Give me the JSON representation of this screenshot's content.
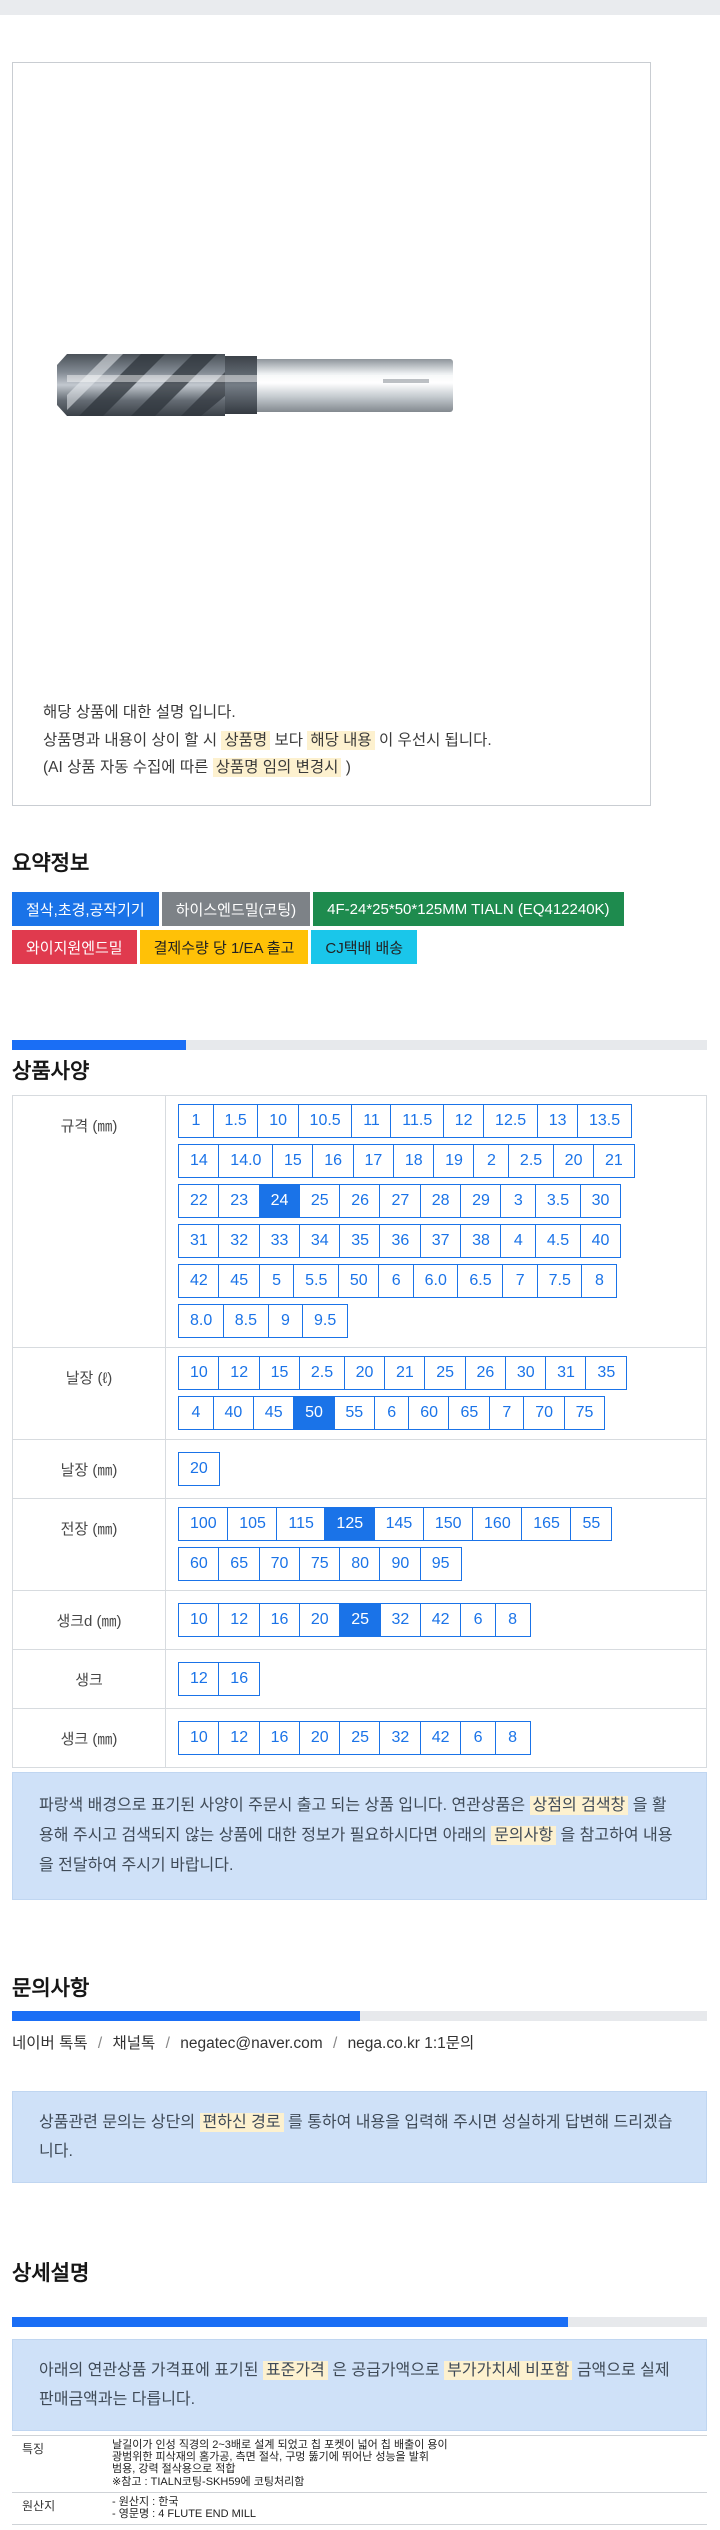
{
  "colors": {
    "accent_blue": "#1a73e8",
    "divider_blue": "#1a6ef5",
    "divider_gray": "#e7e9ec",
    "notice_bg": "#cfe1f8",
    "highlight_yellow": "#fdf1cf",
    "topbar_gray": "#e9ebee"
  },
  "product_box": {
    "image_name": "endmill-product-photo",
    "description_lines": [
      {
        "segments": [
          {
            "text": "해당 상품에 대한 설명 입니다.",
            "highlight": false
          }
        ]
      },
      {
        "segments": [
          {
            "text": "상품명과 내용이 상이 할 시 ",
            "highlight": false
          },
          {
            "text": "상품명",
            "highlight": true
          },
          {
            "text": " 보다 ",
            "highlight": false
          },
          {
            "text": "해당 내용",
            "highlight": true
          },
          {
            "text": " 이 우선시 됩니다.",
            "highlight": false
          }
        ]
      },
      {
        "segments": [
          {
            "text": "(AI 상품 자동 수집에 따른 ",
            "highlight": false
          },
          {
            "text": "상품명 임의 변경시",
            "highlight": true
          },
          {
            "text": " )",
            "highlight": false
          }
        ]
      }
    ]
  },
  "summary": {
    "heading": "요약정보",
    "badge_rows": [
      [
        {
          "label": "절삭,초경,공작기기",
          "bg": "#1a73e8",
          "fg": "#ffffff"
        },
        {
          "label": "하이스엔드밀(코팅)",
          "bg": "#7d8287",
          "fg": "#ffffff"
        },
        {
          "label": "4F-24*25*50*125MM TIALN (EQ412240K)",
          "bg": "#1e8b4e",
          "fg": "#ffffff"
        }
      ],
      [
        {
          "label": "와이지원엔드밀",
          "bg": "#e03a4e",
          "fg": "#ffffff"
        },
        {
          "label": "결제수량 당 1/EA 출고",
          "bg": "#ffc107",
          "fg": "#222222"
        },
        {
          "label": "CJ택배 배송",
          "bg": "#1ac6ea",
          "fg": "#222222"
        }
      ]
    ]
  },
  "spec": {
    "heading": "상품사양",
    "divider_fill_percent": 25,
    "rows": [
      {
        "label": "규격 (㎜)",
        "selected": [
          "24"
        ],
        "groups": [
          [
            "1",
            "1.5",
            "10",
            "10.5",
            "11",
            "11.5",
            "12",
            "12.5",
            "13",
            "13.5"
          ],
          [
            "14",
            "14.0",
            "15",
            "16",
            "17",
            "18",
            "19",
            "2",
            "2.5",
            "20",
            "21"
          ],
          [
            "22",
            "23",
            "24",
            "25",
            "26",
            "27",
            "28",
            "29",
            "3",
            "3.5",
            "30"
          ],
          [
            "31",
            "32",
            "33",
            "34",
            "35",
            "36",
            "37",
            "38",
            "4",
            "4.5",
            "40"
          ],
          [
            "42",
            "45",
            "5",
            "5.5",
            "50",
            "6",
            "6.0",
            "6.5",
            "7",
            "7.5",
            "8"
          ],
          [
            "8.0",
            "8.5",
            "9",
            "9.5"
          ]
        ]
      },
      {
        "label": "날장 (ℓ)",
        "selected": [
          "50"
        ],
        "groups": [
          [
            "10",
            "12",
            "15",
            "2.5",
            "20",
            "21",
            "25",
            "26",
            "30",
            "31",
            "35"
          ],
          [
            "4",
            "40",
            "45",
            "50",
            "55",
            "6",
            "60",
            "65",
            "7",
            "70",
            "75"
          ]
        ]
      },
      {
        "label": "날장 (㎜)",
        "selected": [],
        "groups": [
          [
            "20"
          ]
        ]
      },
      {
        "label": "전장 (㎜)",
        "selected": [
          "125"
        ],
        "groups": [
          [
            "100",
            "105",
            "115",
            "125",
            "145",
            "150",
            "160",
            "165",
            "55"
          ],
          [
            "60",
            "65",
            "70",
            "75",
            "80",
            "90",
            "95"
          ]
        ]
      },
      {
        "label": "생크d (㎜)",
        "selected": [
          "25"
        ],
        "groups": [
          [
            "10",
            "12",
            "16",
            "20",
            "25",
            "32",
            "42",
            "6",
            "8"
          ]
        ]
      },
      {
        "label": "생크",
        "selected": [],
        "groups": [
          [
            "12",
            "16"
          ]
        ]
      },
      {
        "label": "생크 (㎜)",
        "selected": [],
        "groups": [
          [
            "10",
            "12",
            "16",
            "20",
            "25",
            "32",
            "42",
            "6",
            "8"
          ]
        ]
      }
    ],
    "notice_segments": [
      {
        "text": "파랑색 배경으로 표기된 사양이 주문시 출고 되는 상품 입니다. 연관상품은 ",
        "highlight": false
      },
      {
        "text": "상점의 검색창",
        "highlight": true
      },
      {
        "text": " 을 활용해 주시고 검색되지 않는 상품에 대한 정보가 필요하시다면 아래의 ",
        "highlight": false
      },
      {
        "text": "문의사항",
        "highlight": true
      },
      {
        "text": " 을 참고하여 내용을 전달하여 주시기 바랍니다.",
        "highlight": false
      }
    ]
  },
  "inquiry": {
    "heading": "문의사항",
    "divider_fill_percent": 50,
    "contact_items": [
      "네이버 톡톡",
      "채널톡",
      "negatec@naver.com",
      "nega.co.kr 1:1문의"
    ],
    "contact_separator": "/",
    "notice_segments": [
      {
        "text": "상품관련 문의는 상단의 ",
        "highlight": false
      },
      {
        "text": "편하신 경로",
        "highlight": true
      },
      {
        "text": " 를 통하여 내용을 입력해 주시면 성실하게 답변해 드리겠습니다.",
        "highlight": false
      }
    ]
  },
  "detail": {
    "heading": "상세설명",
    "divider_fill_percent": 80,
    "notice_segments": [
      {
        "text": "아래의 연관상품 가격표에 표기된 ",
        "highlight": false
      },
      {
        "text": "표준가격",
        "highlight": true
      },
      {
        "text": " 은 공급가액으로 ",
        "highlight": false
      },
      {
        "text": "부가가치세 비포함",
        "highlight": true
      },
      {
        "text": " 금액으로 실제 판매금액과는 다릅니다.",
        "highlight": false
      }
    ],
    "table_rows": [
      {
        "label": "특징",
        "lines": [
          "날길이가 인성 직경의 2~3배로 설계 되었고 칩 포켓이 넓어 칩 배출이 용이",
          "광범위한 피삭재의 홈가공, 측면 절삭, 구멍 뚫기에 뛰어난 성능을 발휘",
          "범용, 강력 절삭용으로 적합",
          "※참고 : TIALN코팅-SKH59에 코팅처리함"
        ]
      },
      {
        "label": "원산지",
        "lines": [
          "- 원산지 : 한국",
          "- 영문명 : 4 FLUTE END MILL"
        ]
      }
    ]
  }
}
